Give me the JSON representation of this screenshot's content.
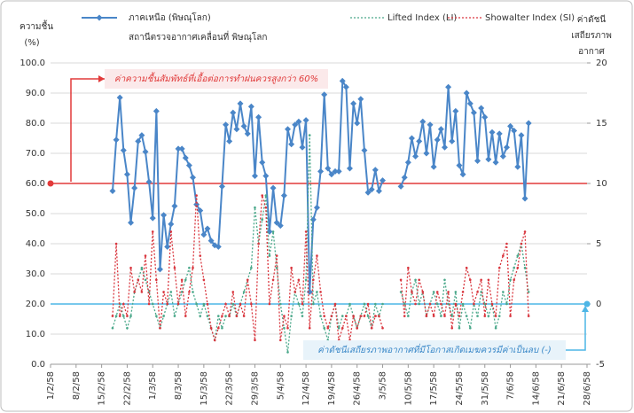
{
  "chart_data": {
    "type": "line",
    "legend_note": "สถานีตรวจอากาศเคลื่อนที่  พิษณุโลก",
    "y_label": [
      "ความชื้น",
      "(%)"
    ],
    "y2_label": [
      "ค่าดัชนี",
      "เสถียรภาพ",
      "อากาศ"
    ],
    "annotations": [
      "ค่าความชื้นสัมพัทธ์ที่เอื้อต่อการทำฝนควรสูงกว่า  60%",
      "ค่าดัชนีเสถียรภาพอากาศที่มีโอกาสเกิดเมฆควรมีค่าเป็นลบ  (-)"
    ],
    "reference_lines": [
      {
        "value": 60,
        "axis": "y",
        "color": "#e23a3a"
      },
      {
        "value": 0,
        "axis": "y2",
        "color": "#4db6e6"
      }
    ],
    "grid": true,
    "xlim": [
      "1/2/58",
      "28/6/58"
    ],
    "xticks": [
      "1/2/58",
      "8/2/58",
      "15/2/58",
      "22/2/58",
      "1/3/58",
      "8/3/58",
      "15/3/58",
      "22/3/58",
      "29/3/58",
      "5/4/58",
      "12/4/58",
      "19/4/58",
      "26/4/58",
      "3/5/58",
      "10/5/58",
      "17/5/58",
      "24/5/58",
      "31/5/58",
      "7/6/58",
      "14/6/58",
      "21/6/58",
      "28/6/58"
    ],
    "ylim": [
      0,
      100
    ],
    "yticks": [
      {
        "value": 0,
        "label": "0.0"
      },
      {
        "value": 10,
        "label": "10.0"
      },
      {
        "value": 20,
        "label": "20.0"
      },
      {
        "value": 30,
        "label": "30.0"
      },
      {
        "value": 40,
        "label": "40.0"
      },
      {
        "value": 50,
        "label": "50.0"
      },
      {
        "value": 60,
        "label": "60.0"
      },
      {
        "value": 70,
        "label": "70.0"
      },
      {
        "value": 80,
        "label": "80.0"
      },
      {
        "value": 90,
        "label": "90.0"
      },
      {
        "value": 100,
        "label": "100.0"
      }
    ],
    "y2lim": [
      -5,
      20
    ],
    "y2ticks": [
      -5,
      0,
      5,
      10,
      15,
      20
    ],
    "x": [
      "18/2/58",
      "19/2/58",
      "20/2/58",
      "21/2/58",
      "22/2/58",
      "23/2/58",
      "24/2/58",
      "25/2/58",
      "26/2/58",
      "27/2/58",
      "28/2/58",
      "1/3/58",
      "2/3/58",
      "3/3/58",
      "4/3/58",
      "5/3/58",
      "6/3/58",
      "7/3/58",
      "8/3/58",
      "9/3/58",
      "10/3/58",
      "11/3/58",
      "12/3/58",
      "13/3/58",
      "14/3/58",
      "15/3/58",
      "16/3/58",
      "17/3/58",
      "18/3/58",
      "19/3/58",
      "20/3/58",
      "21/3/58",
      "22/3/58",
      "23/3/58",
      "24/3/58",
      "25/3/58",
      "26/3/58",
      "27/3/58",
      "28/3/58",
      "29/3/58",
      "30/3/58",
      "31/3/58",
      "1/4/58",
      "2/4/58",
      "3/4/58",
      "4/4/58",
      "5/4/58",
      "6/4/58",
      "7/4/58",
      "8/4/58",
      "9/4/58",
      "10/4/58",
      "11/4/58",
      "12/4/58",
      "13/4/58",
      "14/4/58",
      "15/4/58",
      "16/4/58",
      "17/4/58",
      "18/4/58",
      "19/4/58",
      "20/4/58",
      "21/4/58",
      "22/4/58",
      "23/4/58",
      "24/4/58",
      "25/4/58",
      "26/4/58",
      "27/4/58",
      "28/4/58",
      "29/4/58",
      "30/4/58",
      "1/5/58",
      "2/5/58",
      "3/5/58",
      "4/5/58",
      "5/5/58",
      "6/5/58",
      "7/5/58",
      "8/5/58",
      "9/5/58",
      "10/5/58",
      "11/5/58",
      "12/5/58",
      "13/5/58",
      "14/5/58",
      "15/5/58",
      "16/5/58",
      "17/5/58",
      "18/5/58",
      "19/5/58",
      "20/5/58",
      "21/5/58",
      "22/5/58",
      "23/5/58",
      "24/5/58",
      "25/5/58",
      "26/5/58",
      "27/5/58",
      "28/5/58",
      "29/5/58",
      "30/5/58",
      "31/5/58",
      "1/6/58",
      "2/6/58",
      "3/6/58",
      "4/6/58",
      "5/6/58",
      "6/6/58",
      "7/6/58",
      "8/6/58",
      "9/6/58",
      "10/6/58",
      "11/6/58",
      "12/6/58"
    ],
    "series": [
      {
        "name": "ภาคเหนือ (พิษณุโลก)",
        "color": "#4a86c8",
        "axis": "y",
        "style": "solid",
        "values": [
          57.5,
          74.5,
          88.5,
          71,
          63,
          47,
          58.5,
          74,
          76,
          70.5,
          60.5,
          48.5,
          84,
          31.5,
          49.5,
          39,
          46.5,
          52.5,
          71.5,
          71.5,
          68.5,
          66,
          62,
          53,
          51,
          43,
          45,
          41,
          39.5,
          39,
          59,
          79.5,
          74,
          83.5,
          78,
          86.5,
          79,
          76.5,
          85.5,
          62.5,
          82,
          67,
          62.5,
          44,
          58.5,
          47,
          46,
          56,
          78,
          73,
          79.5,
          80.5,
          72,
          81,
          24,
          48,
          52,
          64,
          89.5,
          65,
          63,
          64,
          64,
          94,
          92,
          65,
          86.5,
          80,
          88,
          71,
          57,
          58,
          64.5,
          57.5,
          61,
          null,
          null,
          null,
          null,
          59,
          62,
          67,
          75,
          69,
          74,
          80.5,
          70,
          79.5,
          65.5,
          74.5,
          78,
          72,
          92,
          74,
          84,
          66,
          63,
          90,
          86.5,
          83.5,
          67.5,
          85,
          82,
          68,
          77,
          67,
          76.5,
          69,
          72,
          79,
          77.5,
          65.5,
          76,
          55,
          80
        ]
      },
      {
        "name": "Lifted Index (LI)",
        "color": "#4aa88a",
        "axis": "y2",
        "style": "dotted",
        "values": [
          -2,
          -1,
          0,
          -1,
          -2,
          -1,
          1,
          2,
          3,
          2,
          1,
          0,
          -1,
          -2,
          -1,
          0,
          1,
          -1,
          0,
          1,
          2,
          3,
          1,
          0,
          -1,
          0,
          -1,
          -2,
          -3,
          -1,
          -2,
          -1,
          -1,
          0,
          -1,
          0,
          1,
          2,
          3,
          8,
          5,
          7,
          9,
          4,
          6,
          3,
          0,
          -2,
          -4,
          -1,
          1,
          0,
          -1,
          2,
          14,
          0,
          1,
          -1,
          -2,
          -3,
          -1,
          0,
          -2,
          -1,
          -1,
          0,
          -1,
          -2,
          -1,
          0,
          -1,
          -2,
          0,
          -1,
          0,
          null,
          null,
          null,
          null,
          1,
          0,
          -1,
          1,
          2,
          0,
          1,
          -1,
          0,
          1,
          0,
          -1,
          2,
          0,
          -1,
          1,
          -2,
          0,
          -1,
          -2,
          0,
          -1,
          1,
          0,
          -1,
          0,
          -2,
          -1,
          1,
          0,
          2,
          3,
          4,
          5,
          3,
          1
        ]
      },
      {
        "name": "Showalter Index (SI)",
        "color": "#d9363e",
        "axis": "y2",
        "style": "dotted",
        "values": [
          -1,
          5,
          -1,
          0,
          -1,
          3,
          1,
          2,
          1,
          4,
          0,
          6,
          2,
          -2,
          1,
          0,
          6,
          3,
          0,
          2,
          -1,
          1,
          3,
          9,
          4,
          2,
          0,
          -2,
          -3,
          -2,
          -1,
          0,
          -1,
          1,
          -1,
          0,
          -1,
          2,
          0,
          -3,
          5,
          9,
          8,
          0,
          2,
          4,
          -3,
          -1,
          -2,
          3,
          1,
          2,
          0,
          6,
          -2,
          2,
          4,
          1,
          -1,
          -2,
          -1,
          0,
          -3,
          -2,
          -1,
          -3,
          -1,
          -2,
          -1,
          -1,
          0,
          -2,
          -1,
          -1,
          -2,
          null,
          null,
          null,
          null,
          2,
          -1,
          3,
          1,
          0,
          2,
          1,
          -1,
          0,
          -1,
          1,
          0,
          -1,
          1,
          -2,
          0,
          -1,
          1,
          3,
          2,
          0,
          1,
          2,
          -1,
          2,
          0,
          -1,
          3,
          4,
          5,
          -1,
          2,
          3,
          5,
          6,
          -1
        ]
      }
    ]
  }
}
